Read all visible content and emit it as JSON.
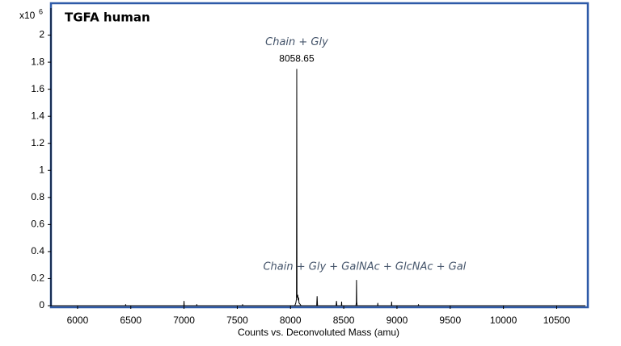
{
  "chart_data": {
    "type": "line",
    "title": "TGFA human",
    "y_unit_base": "x10",
    "y_unit_exponent": "6",
    "x_label": "Counts vs. Deconvoluted Mass (amu)",
    "annotations": [
      "Chain + Gly",
      "8058.65",
      "Chain + Gly + GalNAc + GlcNAc + Gal"
    ],
    "x": [
      5750,
      6450,
      6452,
      6454,
      6998,
      7000,
      7002,
      7118,
      7120,
      7122,
      7548,
      7550,
      7552,
      8040,
      8050,
      8056,
      8058.65,
      8061,
      8068,
      8072,
      8076,
      8080,
      8090,
      8100,
      8246,
      8250,
      8254,
      8428,
      8432,
      8436,
      8478,
      8480,
      8482,
      8614,
      8618,
      8620,
      8622,
      8626,
      8818,
      8820,
      8822,
      8948,
      8950,
      8952,
      9200,
      9202,
      9204,
      10770
    ],
    "series": [
      {
        "color": "#000000",
        "values": [
          0,
          0,
          0.01,
          0,
          0,
          0.035,
          0,
          0,
          0.01,
          0,
          0,
          0.01,
          0,
          0,
          0.02,
          0.05,
          1.75,
          0.06,
          0.08,
          0.04,
          0.06,
          0.02,
          0.01,
          0,
          0,
          0.07,
          0,
          0,
          0.035,
          0,
          0,
          0.03,
          0,
          0,
          0.02,
          0.19,
          0.03,
          0,
          0,
          0.02,
          0,
          0,
          0.03,
          0,
          0,
          0.01,
          0,
          0
        ]
      }
    ],
    "xlim": [
      5750,
      10770
    ],
    "ylim": [
      0,
      2.2
    ],
    "xticks": [
      6000,
      6500,
      7000,
      7500,
      8000,
      8500,
      9000,
      9500,
      10000,
      10500
    ],
    "yticks": [
      0,
      0.2,
      0.4,
      0.6,
      0.8,
      1,
      1.2,
      1.4,
      1.6,
      1.8,
      2
    ],
    "frame_color": "#2e5aa8"
  }
}
